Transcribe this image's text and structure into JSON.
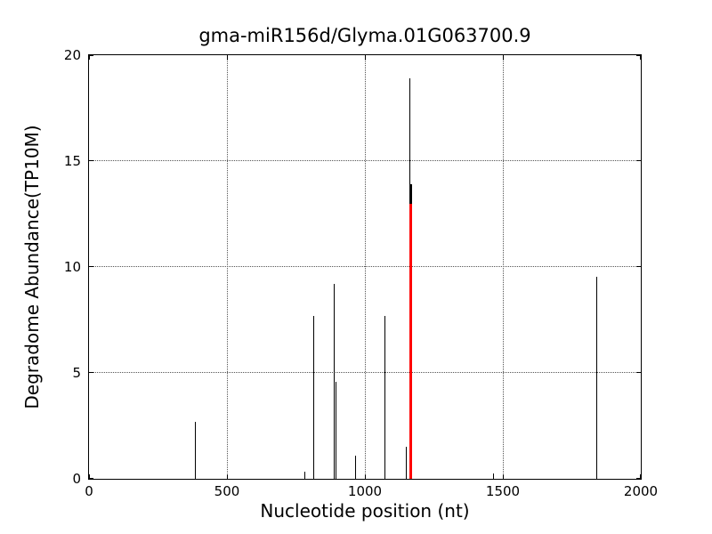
{
  "chart_data": {
    "type": "bar",
    "subtype": "stem",
    "title": "gma-miR156d/Glyma.01G063700.9",
    "xlabel": "Nucleotide position (nt)",
    "ylabel": "Degradome Abundance(TP10M)",
    "xlim": [
      0,
      2000
    ],
    "ylim": [
      0,
      20
    ],
    "xticks": [
      0,
      500,
      1000,
      1500,
      2000
    ],
    "yticks": [
      0,
      5,
      10,
      15,
      20
    ],
    "grid": true,
    "grid_style": "dotted",
    "legend": "none",
    "colors": {
      "stem_default": "#000000",
      "stem_highlight": "#ff0000",
      "axis": "#000000",
      "background": "#ffffff"
    },
    "series": [
      {
        "name": "degradome-abundance-peaks",
        "color": "#000000",
        "linewidth": 1,
        "points": [
          {
            "x": 384,
            "y": 2.7
          },
          {
            "x": 781,
            "y": 0.35
          },
          {
            "x": 813,
            "y": 7.7
          },
          {
            "x": 888,
            "y": 9.2
          },
          {
            "x": 895,
            "y": 4.6
          },
          {
            "x": 965,
            "y": 1.1
          },
          {
            "x": 1074,
            "y": 7.7
          },
          {
            "x": 1150,
            "y": 1.5
          },
          {
            "x": 1162,
            "y": 18.9
          },
          {
            "x": 1466,
            "y": 0.25
          },
          {
            "x": 1841,
            "y": 9.55
          }
        ]
      },
      {
        "name": "degradome-peak-at-cleavage-site-black",
        "color": "#000000",
        "linewidth": 3,
        "points": [
          {
            "x": 1167,
            "y": 13.9
          }
        ]
      },
      {
        "name": "mirna-cleavage-site-highlight",
        "color": "#ff0000",
        "linewidth": 3,
        "points": [
          {
            "x": 1165,
            "y": 13.0
          }
        ]
      }
    ]
  }
}
